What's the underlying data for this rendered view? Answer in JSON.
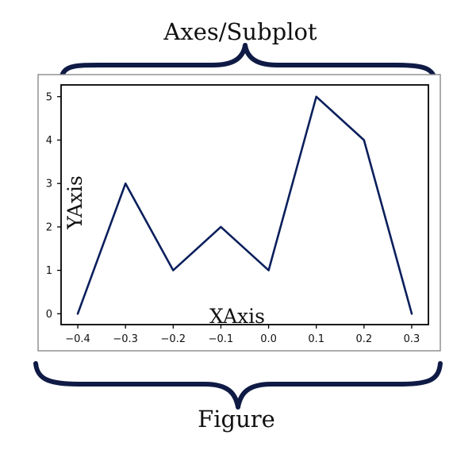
{
  "diagram": {
    "top_label": "Axes/Subplot",
    "bottom_label": "Figure",
    "brace_color": "#0f1b45"
  },
  "chart_data": {
    "type": "line",
    "x": [
      -0.4,
      -0.3,
      -0.2,
      -0.1,
      0.0,
      0.1,
      0.2,
      0.3
    ],
    "series": [
      {
        "values": [
          0,
          3,
          1,
          2,
          1,
          5,
          4,
          0
        ],
        "color": "#0b1f5c"
      }
    ],
    "xlabel": "XAxis",
    "ylabel": "YAxis",
    "x_tick_labels": [
      "-0.4",
      "-0.3",
      "-0.2",
      "-0.1",
      "0.0",
      "0.1",
      "0.2",
      "0.3"
    ],
    "y_tick_labels": [
      "0",
      "1",
      "2",
      "3",
      "4",
      "5"
    ],
    "xlim": [
      -0.435,
      0.335
    ],
    "ylim": [
      -0.25,
      5.27
    ],
    "grid": false,
    "legend": "none"
  }
}
